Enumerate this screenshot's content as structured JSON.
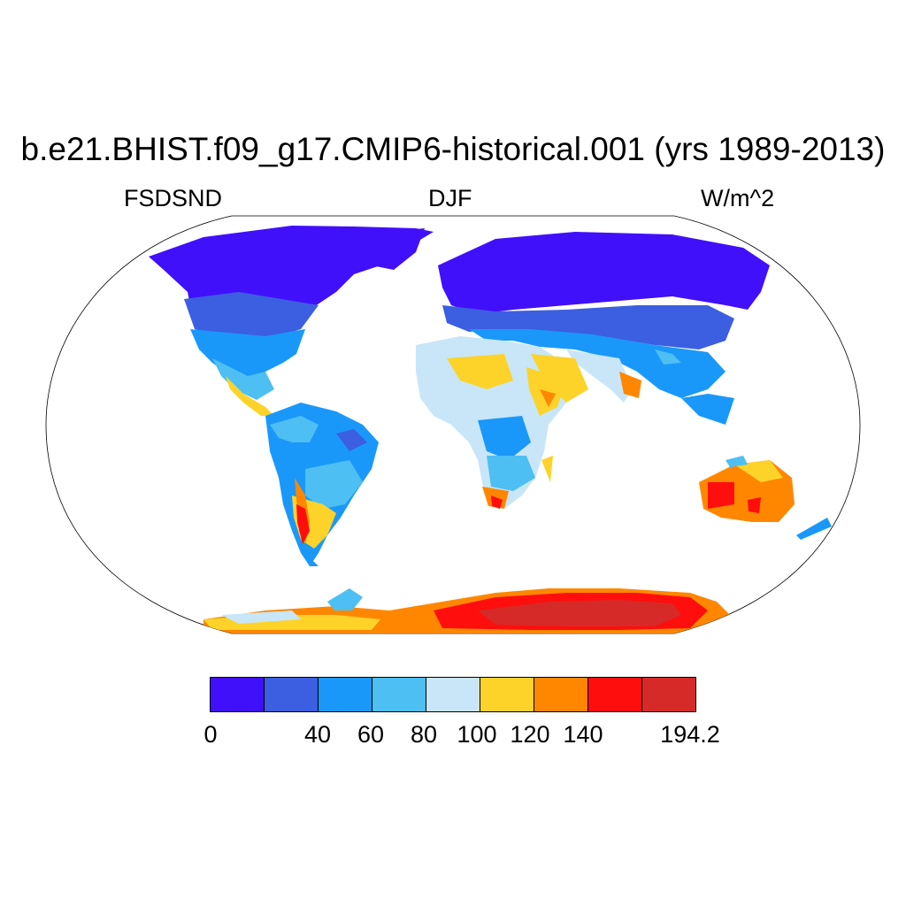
{
  "title": "b.e21.BHIST.f09_g17.CMIP6-historical.001 (yrs 1989-2013)",
  "left_label": "FSDSND",
  "center_label": "DJF",
  "right_label": "W/m^2",
  "colorbar": {
    "colors": [
      "#4010fa",
      "#3c5ee0",
      "#1a98fa",
      "#4dbff2",
      "#c8e6f8",
      "#fdd32a",
      "#ff8700",
      "#ff0e0e",
      "#d62a28"
    ],
    "labels": [
      "0",
      "40",
      "60",
      "80",
      "100",
      "120",
      "140",
      "194.2"
    ]
  }
}
